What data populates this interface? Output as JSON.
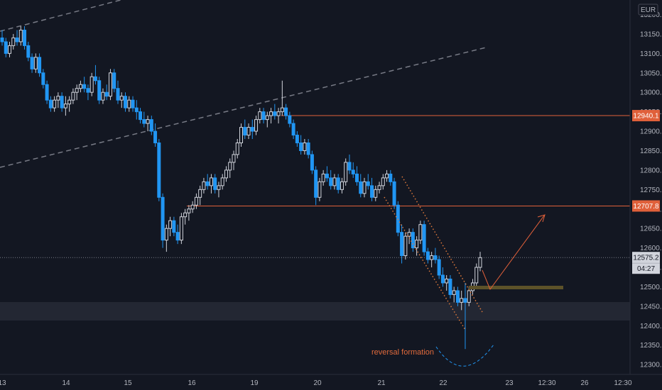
{
  "chart_data": {
    "type": "candlestick",
    "currency": "EUR",
    "ylim": [
      12280,
      13220
    ],
    "yticks": [
      "12300.0",
      "12350.0",
      "12400.0",
      "12450.0",
      "12500.0",
      "12550.0",
      "12600.0",
      "12650.0",
      "12700.0",
      "12750.0",
      "12800.0",
      "12850.0",
      "12900.0",
      "12950.0",
      "13000.0",
      "13050.0",
      "13100.0",
      "13150.0",
      "13200.0"
    ],
    "ytick_values": [
      12300,
      12350,
      12400,
      12450,
      12500,
      12550,
      12600,
      12650,
      12700,
      12750,
      12800,
      12850,
      12900,
      12950,
      13000,
      13050,
      13100,
      13150,
      13200
    ],
    "xticks": [
      "13",
      "14",
      "15",
      "16",
      "19",
      "20",
      "21",
      "22",
      "23",
      "12:30",
      "26",
      "12:30"
    ],
    "current_price": "12575.2",
    "countdown": "04:27",
    "levels": [
      {
        "label": "12940.1",
        "value": 12940.1,
        "color": "#e0603a"
      },
      {
        "label": "12707.8",
        "value": 12707.8,
        "color": "#e0603a"
      }
    ],
    "annotation": "reversal formation",
    "candles": [
      [
        13140,
        13160,
        13120,
        13130
      ],
      [
        13130,
        13140,
        13090,
        13100
      ],
      [
        13100,
        13130,
        13090,
        13120
      ],
      [
        13120,
        13150,
        13110,
        13140
      ],
      [
        13140,
        13160,
        13120,
        13130
      ],
      [
        13130,
        13170,
        13120,
        13160
      ],
      [
        13160,
        13170,
        13110,
        13120
      ],
      [
        13120,
        13130,
        13080,
        13090
      ],
      [
        13090,
        13100,
        13050,
        13060
      ],
      [
        13060,
        13100,
        13050,
        13090
      ],
      [
        13090,
        13100,
        13040,
        13050
      ],
      [
        13050,
        13060,
        13010,
        13020
      ],
      [
        13020,
        13030,
        12970,
        12980
      ],
      [
        12980,
        12990,
        12950,
        12960
      ],
      [
        12960,
        12990,
        12950,
        12980
      ],
      [
        12980,
        13000,
        12960,
        12990
      ],
      [
        12990,
        13000,
        12950,
        12960
      ],
      [
        12960,
        12990,
        12940,
        12970
      ],
      [
        12970,
        12990,
        12950,
        12980
      ],
      [
        12980,
        13010,
        12970,
        13000
      ],
      [
        13000,
        13020,
        12980,
        13010
      ],
      [
        13010,
        13030,
        13000,
        13020
      ],
      [
        13020,
        13040,
        13000,
        13010
      ],
      [
        13010,
        13020,
        12980,
        13000
      ],
      [
        13000,
        13050,
        12990,
        13040
      ],
      [
        13040,
        13070,
        13020,
        13030
      ],
      [
        13030,
        13040,
        12970,
        12980
      ],
      [
        12980,
        13010,
        12970,
        13000
      ],
      [
        13000,
        13020,
        12980,
        12990
      ],
      [
        12990,
        13060,
        12980,
        13050
      ],
      [
        13050,
        13060,
        13000,
        13010
      ],
      [
        13010,
        13030,
        12970,
        12980
      ],
      [
        12980,
        13000,
        12960,
        12990
      ],
      [
        12990,
        13000,
        12950,
        12960
      ],
      [
        12960,
        12990,
        12950,
        12980
      ],
      [
        12980,
        12990,
        12950,
        12960
      ],
      [
        12960,
        12980,
        12930,
        12950
      ],
      [
        12950,
        12960,
        12920,
        12930
      ],
      [
        12930,
        12950,
        12910,
        12920
      ],
      [
        12920,
        12940,
        12900,
        12930
      ],
      [
        12930,
        12940,
        12890,
        12900
      ],
      [
        12900,
        12920,
        12860,
        12870
      ],
      [
        12870,
        12880,
        12720,
        12730
      ],
      [
        12730,
        12740,
        12600,
        12620
      ],
      [
        12620,
        12660,
        12590,
        12650
      ],
      [
        12650,
        12680,
        12630,
        12670
      ],
      [
        12670,
        12680,
        12630,
        12640
      ],
      [
        12640,
        12660,
        12610,
        12620
      ],
      [
        12620,
        12690,
        12610,
        12680
      ],
      [
        12680,
        12700,
        12660,
        12690
      ],
      [
        12690,
        12710,
        12670,
        12700
      ],
      [
        12700,
        12720,
        12690,
        12710
      ],
      [
        12710,
        12740,
        12700,
        12730
      ],
      [
        12730,
        12760,
        12710,
        12750
      ],
      [
        12750,
        12780,
        12740,
        12770
      ],
      [
        12770,
        12790,
        12750,
        12760
      ],
      [
        12760,
        12790,
        12740,
        12780
      ],
      [
        12780,
        12790,
        12740,
        12750
      ],
      [
        12750,
        12770,
        12730,
        12760
      ],
      [
        12760,
        12790,
        12750,
        12780
      ],
      [
        12780,
        12810,
        12770,
        12800
      ],
      [
        12800,
        12830,
        12780,
        12820
      ],
      [
        12820,
        12850,
        12800,
        12840
      ],
      [
        12840,
        12880,
        12830,
        12870
      ],
      [
        12870,
        12920,
        12860,
        12910
      ],
      [
        12910,
        12930,
        12880,
        12890
      ],
      [
        12890,
        12920,
        12880,
        12910
      ],
      [
        12910,
        12930,
        12880,
        12900
      ],
      [
        12900,
        12940,
        12890,
        12930
      ],
      [
        12930,
        12960,
        12920,
        12950
      ],
      [
        12950,
        12960,
        12920,
        12930
      ],
      [
        12930,
        12950,
        12910,
        12940
      ],
      [
        12940,
        12960,
        12920,
        12950
      ],
      [
        12950,
        12970,
        12930,
        12940
      ],
      [
        12940,
        12960,
        12920,
        12950
      ],
      [
        12950,
        13030,
        12940,
        12960
      ],
      [
        12960,
        12970,
        12930,
        12940
      ],
      [
        12940,
        12950,
        12910,
        12920
      ],
      [
        12920,
        12930,
        12880,
        12890
      ],
      [
        12890,
        12900,
        12860,
        12870
      ],
      [
        12870,
        12890,
        12840,
        12850
      ],
      [
        12850,
        12880,
        12840,
        12870
      ],
      [
        12870,
        12880,
        12830,
        12840
      ],
      [
        12840,
        12850,
        12790,
        12800
      ],
      [
        12800,
        12810,
        12710,
        12730
      ],
      [
        12730,
        12780,
        12720,
        12770
      ],
      [
        12770,
        12800,
        12760,
        12790
      ],
      [
        12790,
        12810,
        12770,
        12780
      ],
      [
        12780,
        12800,
        12750,
        12760
      ],
      [
        12760,
        12790,
        12750,
        12780
      ],
      [
        12780,
        12790,
        12740,
        12750
      ],
      [
        12750,
        12780,
        12740,
        12770
      ],
      [
        12770,
        12830,
        12760,
        12820
      ],
      [
        12820,
        12840,
        12790,
        12800
      ],
      [
        12800,
        12820,
        12780,
        12790
      ],
      [
        12790,
        12810,
        12760,
        12770
      ],
      [
        12770,
        12790,
        12730,
        12740
      ],
      [
        12740,
        12780,
        12730,
        12770
      ],
      [
        12770,
        12790,
        12750,
        12760
      ],
      [
        12760,
        12780,
        12720,
        12730
      ],
      [
        12730,
        12760,
        12720,
        12750
      ],
      [
        12750,
        12770,
        12740,
        12760
      ],
      [
        12760,
        12790,
        12750,
        12780
      ],
      [
        12780,
        12800,
        12770,
        12790
      ],
      [
        12790,
        12800,
        12760,
        12770
      ],
      [
        12770,
        12780,
        12700,
        12710
      ],
      [
        12710,
        12720,
        12630,
        12640
      ],
      [
        12640,
        12660,
        12560,
        12580
      ],
      [
        12580,
        12640,
        12570,
        12630
      ],
      [
        12630,
        12650,
        12610,
        12640
      ],
      [
        12640,
        12650,
        12590,
        12600
      ],
      [
        12600,
        12630,
        12580,
        12620
      ],
      [
        12620,
        12670,
        12610,
        12660
      ],
      [
        12660,
        12670,
        12580,
        12590
      ],
      [
        12590,
        12600,
        12560,
        12570
      ],
      [
        12570,
        12590,
        12550,
        12580
      ],
      [
        12580,
        12600,
        12560,
        12570
      ],
      [
        12570,
        12580,
        12520,
        12530
      ],
      [
        12530,
        12550,
        12500,
        12510
      ],
      [
        12510,
        12530,
        12490,
        12520
      ],
      [
        12520,
        12530,
        12470,
        12480
      ],
      [
        12480,
        12500,
        12460,
        12490
      ],
      [
        12490,
        12500,
        12450,
        12460
      ],
      [
        12460,
        12490,
        12440,
        12470
      ],
      [
        12470,
        12510,
        12340,
        12460
      ],
      [
        12460,
        12500,
        12450,
        12490
      ],
      [
        12490,
        12520,
        12480,
        12510
      ],
      [
        12510,
        12560,
        12500,
        12550
      ],
      [
        12550,
        12590,
        12540,
        12575
      ]
    ]
  }
}
